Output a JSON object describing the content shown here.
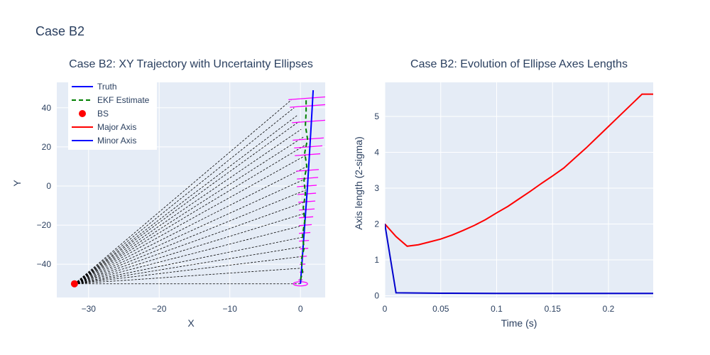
{
  "figure": {
    "title": "Case B2"
  },
  "chart_data": [
    {
      "type": "line",
      "title": "Case B2: XY Trajectory with Uncertainty Ellipses",
      "xlabel": "X",
      "ylabel": "Y",
      "xlim": [
        -34.5,
        3.5
      ],
      "ylim": [
        -57,
        53
      ],
      "xticks": [
        -30,
        -20,
        -10,
        0
      ],
      "yticks": [
        -40,
        -20,
        0,
        20,
        40
      ],
      "tick_labels_x": [
        "−30",
        "−20",
        "−10",
        "0"
      ],
      "tick_labels_y": [
        "−40",
        "−20",
        "0",
        "20",
        "40"
      ],
      "grid": true,
      "legend": {
        "placement": "top-left",
        "entries": [
          {
            "label": "Truth",
            "color": "#0000ff",
            "style": "solid-line"
          },
          {
            "label": "EKF Estimate",
            "color": "#008000",
            "style": "dashed-line"
          },
          {
            "label": "BS",
            "color": "#ff0000",
            "style": "marker"
          },
          {
            "label": "Major Axis",
            "color": "#ff0000",
            "style": "solid-line"
          },
          {
            "label": "Minor Axis",
            "color": "#0000ff",
            "style": "solid-line"
          }
        ]
      },
      "bs": {
        "x": -32,
        "y": -50,
        "color": "#ff0000"
      },
      "truth": {
        "color": "#0000ff",
        "x": [
          0,
          0.5,
          1,
          1.5,
          1.8
        ],
        "y": [
          -50,
          -25,
          0,
          30,
          49
        ]
      },
      "ekf": {
        "color": "#008000",
        "x": [
          0,
          0.3,
          0.1,
          0.5,
          0.3,
          0.6,
          0.4,
          0.7,
          0.5,
          0.9,
          0.6,
          1.0,
          0.7,
          0.8,
          0.8
        ],
        "y": [
          -48,
          -44,
          -38,
          -32,
          -25,
          -18,
          -11,
          -4,
          3,
          10,
          17,
          24,
          31,
          38,
          45
        ]
      },
      "los_lines": {
        "color": "#000000",
        "end_x": [
          0,
          0.2,
          0.3,
          0.4,
          0.5,
          0.5,
          0.6,
          0.7,
          0.8,
          0.9,
          0.9,
          0.9,
          0.7,
          0.4,
          0.1,
          -0.2,
          -0.5,
          -0.9,
          -1.3
        ],
        "end_y": [
          -50,
          -42,
          -36,
          -31,
          -26,
          -20,
          -14,
          -8,
          -2,
          4,
          10,
          16,
          21,
          25,
          29,
          33,
          36,
          40,
          44
        ]
      },
      "major_axes": {
        "color": "#ff00ff",
        "center_x": [
          0,
          0.2,
          0.3,
          0.4,
          0.5,
          0.5,
          0.6,
          0.7,
          0.8,
          0.9,
          0.9,
          0.9,
          0.9,
          1.0,
          1.0,
          1.0,
          1.1,
          1.1,
          1.2,
          1.3,
          1.4
        ],
        "center_y": [
          -48,
          -44,
          -40,
          -36,
          -32,
          -28,
          -24,
          -20,
          -16,
          -12,
          -8,
          -4,
          0,
          4,
          8,
          16,
          20,
          24,
          33,
          41,
          45
        ],
        "half_length": [
          0.3,
          0.3,
          0.4,
          0.5,
          0.6,
          0.7,
          0.8,
          0.9,
          1.0,
          1.1,
          1.2,
          1.3,
          1.4,
          1.5,
          1.6,
          1.8,
          2.0,
          2.2,
          2.4,
          2.8,
          3.1
        ],
        "slope": [
          0.27,
          0.27,
          0.27,
          0.27,
          0.27,
          0.27,
          0.27,
          0.27,
          0.27,
          0.27,
          0.27,
          0.27,
          0.27,
          0.27,
          0.27,
          0.27,
          0.27,
          0.27,
          0.27,
          0.27,
          0.27
        ]
      },
      "ellipse": {
        "cx": 0,
        "cy": -50,
        "rx": 1.0,
        "ry": 1.0,
        "color": "#ff00ff"
      }
    },
    {
      "type": "line",
      "title": "Case B2: Evolution of Ellipse Axes Lengths",
      "xlabel": "Time (s)",
      "ylabel": "Axis length (2-sigma)",
      "xlim": [
        0,
        0.24
      ],
      "ylim": [
        -0.05,
        5.95
      ],
      "xticks": [
        0,
        0.05,
        0.1,
        0.15,
        0.2
      ],
      "yticks": [
        0,
        1,
        2,
        3,
        4,
        5
      ],
      "tick_labels_x": [
        "0",
        "0.05",
        "0.1",
        "0.15",
        "0.2"
      ],
      "tick_labels_y": [
        "0",
        "1",
        "2",
        "3",
        "4",
        "5"
      ],
      "grid": true,
      "series": [
        {
          "color": "#ff0000",
          "x": [
            0,
            0.01,
            0.02,
            0.03,
            0.04,
            0.05,
            0.06,
            0.07,
            0.08,
            0.09,
            0.1,
            0.11,
            0.12,
            0.13,
            0.14,
            0.15,
            0.16,
            0.17,
            0.18,
            0.19,
            0.2,
            0.21,
            0.22,
            0.23,
            0.24
          ],
          "values": [
            2.0,
            1.65,
            1.38,
            1.42,
            1.5,
            1.58,
            1.69,
            1.82,
            1.96,
            2.12,
            2.31,
            2.49,
            2.7,
            2.91,
            3.13,
            3.34,
            3.56,
            3.84,
            4.12,
            4.42,
            4.72,
            5.02,
            5.32,
            5.62,
            5.62
          ]
        },
        {
          "color": "#0000cc",
          "x": [
            0,
            0.01,
            0.05,
            0.1,
            0.15,
            0.2,
            0.24
          ],
          "values": [
            2.0,
            0.08,
            0.07,
            0.065,
            0.065,
            0.065,
            0.065
          ]
        }
      ]
    }
  ]
}
